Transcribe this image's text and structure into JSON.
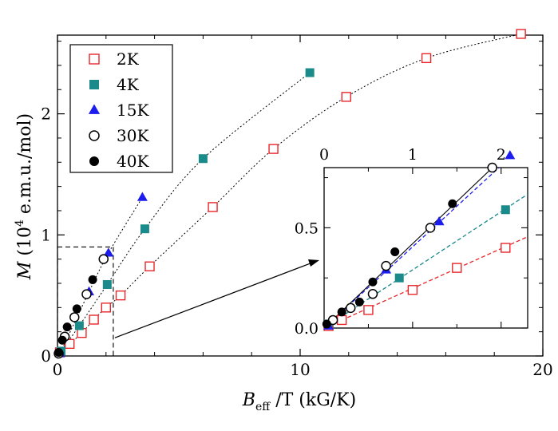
{
  "chart_data": {
    "type": "scatter",
    "main": {
      "xlabel": {
        "main": "B",
        "sub": "eff",
        "rest": " /T (kG/K)"
      },
      "ylabel": {
        "main": "M",
        "rest": " (10",
        "sup": "4",
        "rest2": " e.m.u./mol)"
      },
      "xlim": [
        0,
        20
      ],
      "ylim": [
        0,
        2.65
      ],
      "xticks": [
        0,
        10,
        20
      ],
      "xtick_labels": [
        "0",
        "10",
        "20"
      ],
      "yticks": [
        0,
        1,
        2
      ],
      "ytick_labels": [
        "0",
        "1",
        "2"
      ],
      "legend_placement": "top-left",
      "series": [
        {
          "name": "2K",
          "marker": "open-square",
          "color": "#e8262a",
          "x": [
            0.1,
            0.5,
            1.0,
            1.5,
            2.0,
            2.6,
            3.8,
            6.4,
            8.9,
            11.9,
            15.2,
            19.1
          ],
          "y": [
            0.03,
            0.1,
            0.19,
            0.3,
            0.4,
            0.5,
            0.74,
            1.23,
            1.71,
            2.14,
            2.46,
            2.66
          ]
        },
        {
          "name": "4K",
          "marker": "filled-square",
          "color": "#1a8a8a",
          "x": [
            0.15,
            0.9,
            2.05,
            3.6,
            6.0,
            10.4
          ],
          "y": [
            0.04,
            0.25,
            0.59,
            1.05,
            1.63,
            2.34
          ]
        },
        {
          "name": "15K",
          "marker": "filled-triangle",
          "color": "#1c1cee",
          "x": [
            0.1,
            1.3,
            2.1,
            3.5
          ],
          "y": [
            0.02,
            0.53,
            0.85,
            1.31
          ]
        },
        {
          "name": "30K",
          "marker": "open-circle",
          "color": "#000000",
          "x": [
            0.05,
            0.3,
            0.7,
            1.2,
            1.9
          ],
          "y": [
            0.02,
            0.16,
            0.32,
            0.51,
            0.8
          ]
        },
        {
          "name": "40K",
          "marker": "filled-circle",
          "color": "#000000",
          "x": [
            0.05,
            0.2,
            0.4,
            0.8,
            1.45
          ],
          "y": [
            0.03,
            0.13,
            0.24,
            0.39,
            0.63
          ]
        }
      ]
    },
    "inset": {
      "xlim": [
        0,
        2.3
      ],
      "ylim": [
        0,
        0.8
      ],
      "xticks": [
        0,
        1,
        2
      ],
      "xtick_labels": [
        "0",
        "1",
        "2"
      ],
      "yticks": [
        0,
        0.5
      ],
      "ytick_labels": [
        "0.0",
        "0.5"
      ],
      "series": [
        {
          "name": "2K",
          "marker": "open-square",
          "color": "#e8262a",
          "line_color": "#e8262a",
          "x": [
            0.05,
            0.2,
            0.5,
            1.0,
            1.5,
            2.05
          ],
          "y": [
            0.01,
            0.04,
            0.09,
            0.19,
            0.3,
            0.4
          ]
        },
        {
          "name": "4K",
          "marker": "filled-square",
          "color": "#1a8a8a",
          "line_color": "#1a8a8a",
          "x": [
            0.05,
            0.85,
            2.05
          ],
          "y": [
            0.02,
            0.25,
            0.59
          ]
        },
        {
          "name": "15K",
          "marker": "filled-triangle",
          "color": "#1c1cee",
          "line_color": "#1c1cee",
          "x": [
            0.05,
            0.7,
            1.3,
            2.1
          ],
          "y": [
            0.01,
            0.29,
            0.53,
            0.86
          ]
        },
        {
          "name": "30K",
          "marker": "open-circle",
          "color": "#000000",
          "line_color": "#000000",
          "x": [
            0.1,
            0.3,
            0.55,
            0.7,
            1.2,
            1.9
          ],
          "y": [
            0.04,
            0.1,
            0.17,
            0.31,
            0.5,
            0.8
          ]
        },
        {
          "name": "40K",
          "marker": "filled-circle",
          "color": "#000000",
          "line_color": "#000000",
          "x": [
            0.03,
            0.2,
            0.4,
            0.55,
            0.8,
            1.45
          ],
          "y": [
            0.02,
            0.08,
            0.13,
            0.23,
            0.38,
            0.62
          ]
        }
      ]
    }
  }
}
